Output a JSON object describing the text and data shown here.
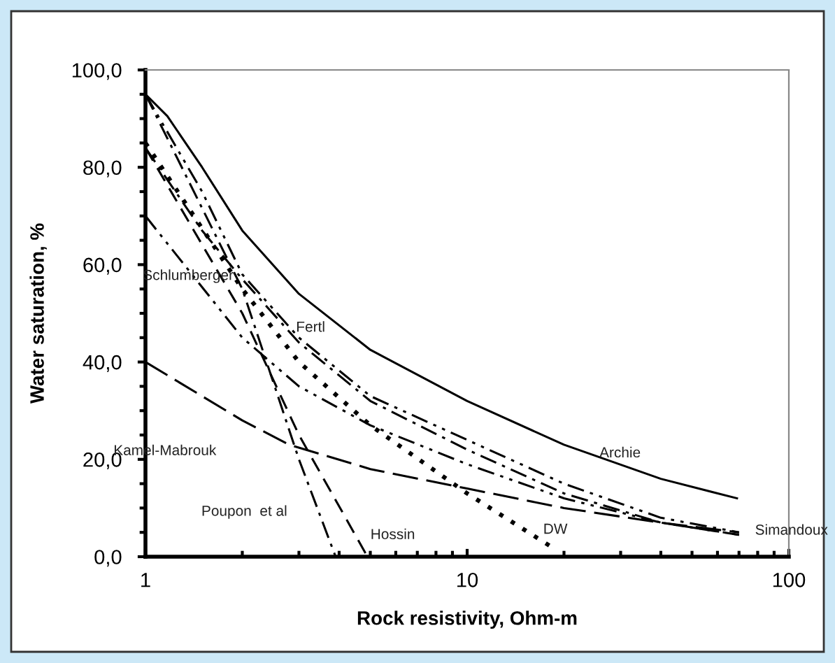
{
  "chart_data": {
    "type": "line",
    "xlabel": "Rock resistivity, Ohm-m",
    "ylabel": "Water saturation, %",
    "log": "x",
    "xlim": [
      1,
      100
    ],
    "xticks": [
      1,
      10,
      100
    ],
    "ylim": [
      0,
      100
    ],
    "yticks": [
      {
        "value": 0,
        "label": "0,0"
      },
      {
        "value": 20,
        "label": "20,0"
      },
      {
        "value": 40,
        "label": "40,0"
      },
      {
        "value": 60,
        "label": "60,0"
      },
      {
        "value": 80,
        "label": "80,0"
      },
      {
        "value": 100,
        "label": "100,0"
      }
    ],
    "grid": false,
    "legend": false,
    "marker": "none",
    "series": [
      {
        "name": "Archie",
        "color": "#000000",
        "line_style": "solid",
        "x": [
          1,
          1.17,
          1.5,
          2,
          3,
          5,
          10,
          20,
          40,
          69
        ],
        "values": [
          95,
          90.5,
          80,
          67,
          54,
          42.5,
          32,
          23,
          16,
          12
        ]
      },
      {
        "name": "Schlumberger",
        "color": "#000000",
        "line_style": "dashdotdot",
        "x": [
          1,
          2,
          3,
          5,
          10,
          20,
          40,
          70
        ],
        "values": [
          70,
          45,
          35,
          27,
          19,
          12,
          7,
          4.5
        ]
      },
      {
        "name": "Fertl",
        "color": "#000000",
        "line_style": "dashdotdot",
        "x": [
          1,
          1.5,
          2,
          3,
          5,
          10,
          20,
          40,
          70
        ],
        "values": [
          95,
          75,
          58,
          45,
          33,
          24,
          15,
          8,
          5
        ]
      },
      {
        "name": "Simandoux",
        "color": "#000000",
        "line_style": "dashdot",
        "x": [
          1,
          1.5,
          2,
          3,
          5,
          10,
          20,
          40,
          70
        ],
        "values": [
          84,
          67,
          57,
          44,
          32,
          22,
          13,
          7,
          4.5
        ]
      },
      {
        "name": "Poupon  et al",
        "color": "#000000",
        "line_style": "dashdot",
        "x": [
          1,
          2,
          3,
          3.9
        ],
        "values": [
          95,
          55,
          20,
          0
        ]
      },
      {
        "name": "Hossin",
        "color": "#000000",
        "line_style": "dashed",
        "x": [
          1,
          2,
          3,
          4.9
        ],
        "values": [
          84,
          50,
          25,
          0
        ]
      },
      {
        "name": "DW",
        "color": "#000000",
        "line_style": "dotted",
        "x": [
          1,
          2,
          3,
          5,
          10,
          18.8
        ],
        "values": [
          85,
          55,
          40,
          27,
          13,
          1.5
        ]
      },
      {
        "name": "Kamel-Mabrouk",
        "color": "#000000",
        "line_style": "longdash",
        "x": [
          1,
          2,
          2.8,
          5,
          10,
          20,
          40,
          70
        ],
        "values": [
          40,
          28,
          23,
          18,
          14,
          10,
          7,
          5
        ]
      }
    ]
  }
}
